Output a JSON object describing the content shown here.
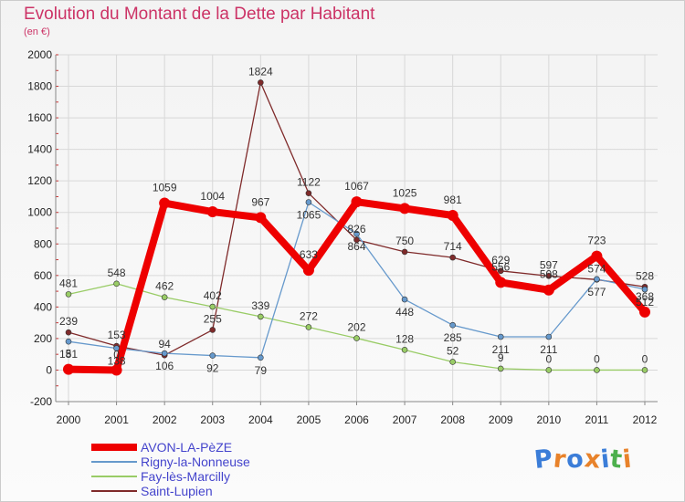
{
  "title": "Evolution du Montant de la Dette par Habitant",
  "subtitle": "(en €)",
  "logo": {
    "text": "Proxiti",
    "letters": [
      "P",
      "r",
      "o",
      "x",
      "i",
      "t",
      "i"
    ],
    "colors": [
      "#3b7dd8",
      "#e8822a",
      "#3b7dd8",
      "#e8822a",
      "#3b7dd8",
      "#4db04d",
      "#e8822a"
    ]
  },
  "chart_data": {
    "type": "line",
    "x": [
      "2000",
      "2001",
      "2002",
      "2003",
      "2004",
      "2005",
      "2006",
      "2007",
      "2008",
      "2009",
      "2010",
      "2011",
      "2012"
    ],
    "ylim": [
      -200,
      2000
    ],
    "yticks": [
      -200,
      0,
      200,
      400,
      600,
      800,
      1000,
      1200,
      1400,
      1600,
      1800,
      2000
    ],
    "grid": true,
    "legend_position": "bottom-left",
    "series": [
      {
        "name": "AVON-LA-PèZE",
        "color": "#ee0000",
        "width": 8,
        "marker": 6,
        "labels_above": true,
        "values": [
          5,
          0,
          1059,
          1004,
          967,
          633,
          1067,
          1025,
          981,
          556,
          508,
          723,
          368
        ]
      },
      {
        "name": "Rigny-la-Nonneuse",
        "color": "#6699cc",
        "width": 1.3,
        "marker": 3,
        "labels_above": false,
        "values": [
          181,
          138,
          106,
          92,
          79,
          1065,
          864,
          448,
          285,
          211,
          211,
          577,
          512
        ]
      },
      {
        "name": "Fay-lès-Marcilly",
        "color": "#99cc66",
        "width": 1.3,
        "marker": 3,
        "labels_above": true,
        "values": [
          481,
          548,
          462,
          402,
          339,
          272,
          202,
          128,
          52,
          9,
          0,
          0,
          0
        ]
      },
      {
        "name": "Saint-Lupien",
        "color": "#7f2a2a",
        "width": 1.3,
        "marker": 3,
        "labels_above": true,
        "values": [
          239,
          153,
          94,
          255,
          1824,
          1122,
          826,
          750,
          714,
          629,
          597,
          574,
          528
        ]
      }
    ]
  }
}
